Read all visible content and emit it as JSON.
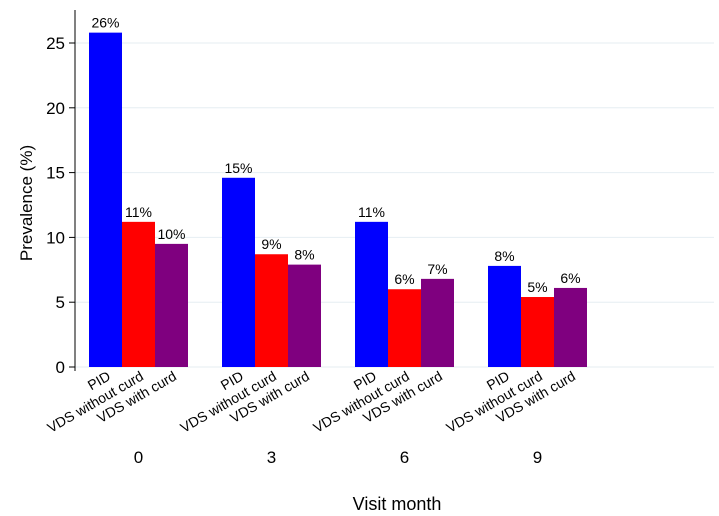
{
  "chart_data": {
    "type": "bar",
    "title": "",
    "xlabel": "Visit month",
    "ylabel": "Prevalence (%)",
    "ylim": [
      0,
      27
    ],
    "yticks": [
      0,
      5,
      10,
      15,
      20,
      25
    ],
    "grid": true,
    "groups": [
      "0",
      "3",
      "6",
      "9"
    ],
    "series": [
      {
        "name": "PID",
        "color": "#0000ff",
        "values": [
          25.8,
          14.6,
          11.2,
          7.8
        ],
        "labels": [
          "26%",
          "15%",
          "11%",
          "8%"
        ]
      },
      {
        "name": "VDS without curd",
        "color": "#ff0000",
        "values": [
          11.2,
          8.7,
          6.0,
          5.4
        ],
        "labels": [
          "11%",
          "9%",
          "6%",
          "5%"
        ]
      },
      {
        "name": "VDS with curd",
        "color": "#7f007f",
        "values": [
          9.5,
          7.9,
          6.8,
          6.1
        ],
        "labels": [
          "10%",
          "8%",
          "7%",
          "6%"
        ]
      }
    ]
  }
}
